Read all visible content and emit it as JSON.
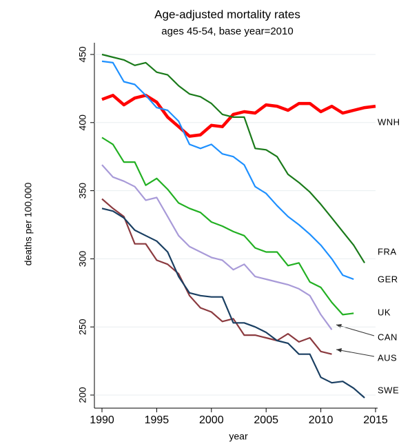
{
  "chart_data": {
    "type": "line",
    "title": "Age-adjusted mortality rates",
    "subtitle": "ages 45-54, base year=2010",
    "x_label": "year",
    "y_label": "deaths per 100,000",
    "x": [
      1990,
      1991,
      1992,
      1993,
      1994,
      1995,
      1996,
      1997,
      1998,
      1999,
      2000,
      2001,
      2002,
      2003,
      2004,
      2005,
      2006,
      2007,
      2008,
      2009,
      2010,
      2011,
      2012,
      2013,
      2014,
      2015
    ],
    "xlim": [
      1990,
      2015
    ],
    "xticks": [
      1990,
      1995,
      2000,
      2005,
      2010,
      2015
    ],
    "ylim": [
      200,
      450
    ],
    "yticks": [
      200,
      250,
      300,
      350,
      400,
      450
    ],
    "grid": true,
    "series": [
      {
        "name": "WNH",
        "color": "#ff0000",
        "values": [
          417,
          420,
          413,
          418,
          420,
          415,
          404,
          397,
          390,
          391,
          398,
          397,
          406,
          408,
          407,
          413,
          412,
          409,
          414,
          414,
          408,
          412,
          407,
          409,
          411,
          412
        ]
      },
      {
        "name": "FRA",
        "color": "#1a7a1a",
        "values": [
          450,
          448,
          446,
          442,
          444,
          437,
          435,
          427,
          421,
          419,
          414,
          406,
          404,
          404,
          381,
          380,
          375,
          362,
          356,
          349,
          340,
          330,
          320,
          310,
          297,
          null
        ]
      },
      {
        "name": "GER",
        "color": "#1e90ff",
        "values": [
          445,
          444,
          430,
          428,
          420,
          411,
          409,
          401,
          384,
          381,
          384,
          377,
          375,
          369,
          353,
          348,
          339,
          331,
          325,
          318,
          310,
          300,
          288,
          285,
          null,
          null
        ]
      },
      {
        "name": "UK",
        "color": "#22b022",
        "values": [
          389,
          384,
          371,
          371,
          354,
          359,
          351,
          341,
          337,
          334,
          327,
          324,
          320,
          317,
          308,
          305,
          305,
          295,
          297,
          283,
          279,
          268,
          259,
          260,
          null,
          null
        ]
      },
      {
        "name": "CAN",
        "color": "#a89ad8",
        "values": [
          369,
          360,
          357,
          353,
          343,
          345,
          331,
          317,
          309,
          305,
          301,
          299,
          292,
          296,
          287,
          285,
          283,
          281,
          278,
          273,
          259,
          248,
          null,
          null,
          null,
          null
        ]
      },
      {
        "name": "AUS",
        "color": "#8b3a3f",
        "values": [
          344,
          337,
          331,
          311,
          311,
          299,
          296,
          289,
          273,
          264,
          261,
          254,
          256,
          244,
          244,
          242,
          240,
          245,
          239,
          242,
          232,
          230,
          null,
          null,
          null,
          null
        ]
      },
      {
        "name": "SWE",
        "color": "#1a3f62",
        "values": [
          337,
          335,
          330,
          321,
          317,
          313,
          305,
          287,
          275,
          273,
          272,
          272,
          253,
          253,
          250,
          246,
          240,
          238,
          230,
          230,
          213,
          209,
          210,
          205,
          198,
          null
        ]
      }
    ]
  }
}
